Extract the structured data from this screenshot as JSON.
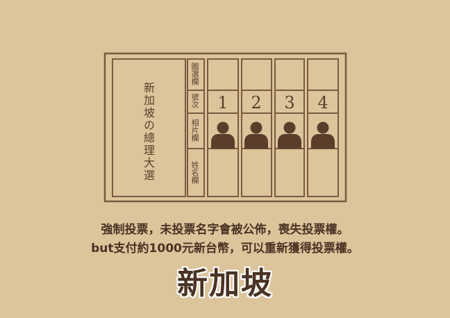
{
  "ballot": {
    "title": "新加坡の總理大選",
    "headers": {
      "circle": "圈選欄",
      "number": "號次",
      "photo": "相片欄",
      "name": "姓名欄"
    },
    "candidates": [
      "1",
      "2",
      "3",
      "4"
    ]
  },
  "caption": {
    "line1": "強制投票，未投票名字會被公佈，喪失投票權。",
    "line2": "but支付約1000元新台幣，可以重新獲得投票權。"
  },
  "country": "新加坡",
  "colors": {
    "background": "#dcc49b",
    "line": "#7a5a40",
    "icon": "#5a3e2b",
    "text": "#4a3324"
  }
}
